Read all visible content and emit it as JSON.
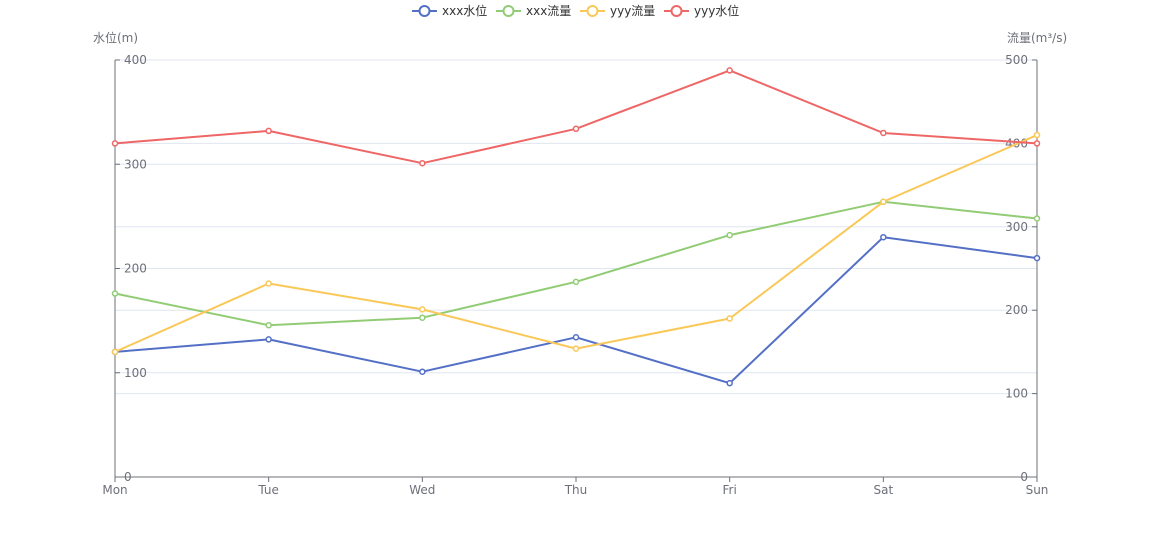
{
  "chart_data": {
    "type": "line",
    "categories": [
      "Mon",
      "Tue",
      "Wed",
      "Thu",
      "Fri",
      "Sat",
      "Sun"
    ],
    "y_left": {
      "label": "水位(m)",
      "ticks": [
        0,
        100,
        200,
        300,
        400
      ],
      "range": [
        0,
        400
      ]
    },
    "y_right": {
      "label": "流量(m³/s)",
      "ticks": [
        0,
        100,
        200,
        300,
        400,
        500
      ],
      "range": [
        0,
        500
      ]
    },
    "legend_position": "top-center",
    "grid": true,
    "series": [
      {
        "name": "xxx水位",
        "axis": "left",
        "color": "#5470c6",
        "values": [
          120,
          132,
          101,
          134,
          90,
          230,
          210
        ]
      },
      {
        "name": "xxx流量",
        "axis": "right",
        "color": "#91cc75",
        "values": [
          220,
          182,
          191,
          234,
          290,
          330,
          310
        ]
      },
      {
        "name": "yyy流量",
        "axis": "right",
        "color": "#fac858",
        "values": [
          150,
          232,
          201,
          154,
          190,
          330,
          410
        ]
      },
      {
        "name": "yyy水位",
        "axis": "left",
        "color": "#ee6666",
        "values": [
          320,
          332,
          301,
          334,
          390,
          330,
          320
        ]
      }
    ]
  }
}
